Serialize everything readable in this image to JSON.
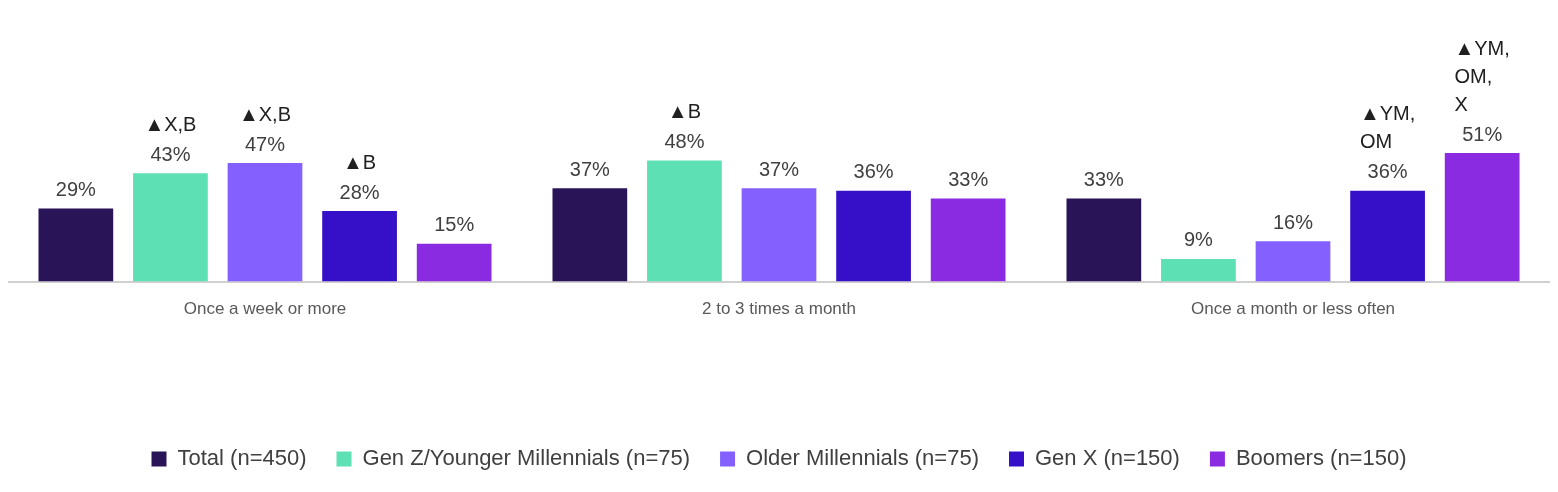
{
  "chart_data": {
    "type": "bar",
    "categories": [
      "Once a week or more",
      "2 to 3 times a month",
      "Once a month or less often"
    ],
    "series": [
      {
        "name": "Total (n=450)",
        "color": "#2a1458",
        "values": [
          29,
          37,
          33
        ],
        "value_labels": [
          "29%",
          "37%",
          "33%"
        ]
      },
      {
        "name": "Gen Z/Younger Millennials (n=75)",
        "color": "#5ce0b4",
        "values": [
          43,
          48,
          9
        ],
        "value_labels": [
          "43%",
          "48%",
          "9%"
        ]
      },
      {
        "name": "Older Millennials (n=75)",
        "color": "#8360ff",
        "values": [
          47,
          37,
          16
        ],
        "value_labels": [
          "47%",
          "37%",
          "16%"
        ]
      },
      {
        "name": "Gen X (n=150)",
        "color": "#3510c8",
        "values": [
          28,
          36,
          36
        ],
        "value_labels": [
          "28%",
          "36%",
          "36%"
        ]
      },
      {
        "name": "Boomers (n=150)",
        "color": "#8a2be2",
        "values": [
          15,
          33,
          51
        ],
        "value_labels": [
          "15%",
          "33%",
          "51%"
        ]
      }
    ],
    "grid": false,
    "legend": "bottom",
    "annotations": [
      "▲X,B",
      "▲X,B",
      "▲B",
      "▲B",
      "▲YM, OM",
      "▲YM, OM, X"
    ]
  }
}
